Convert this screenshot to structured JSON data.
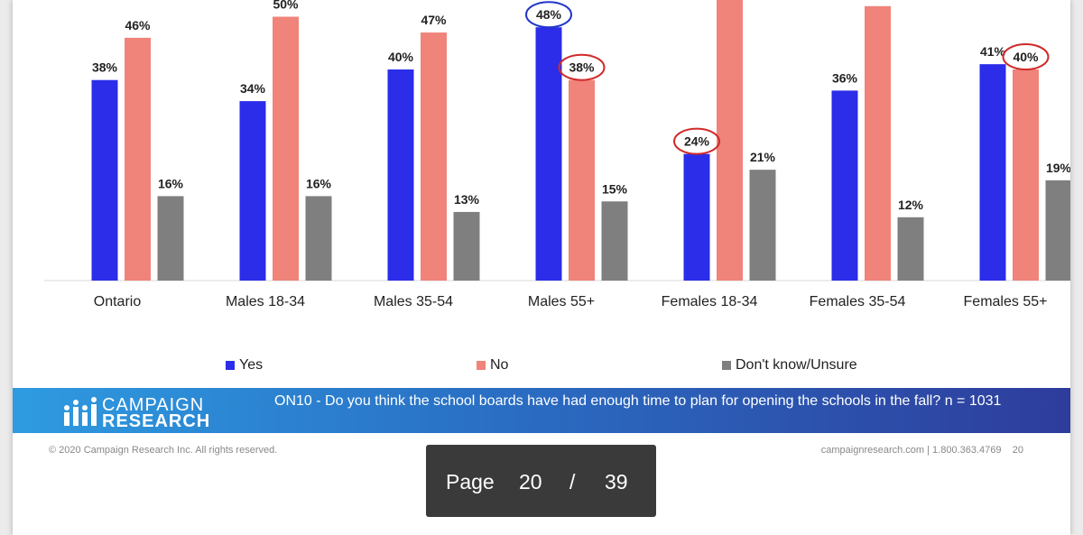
{
  "chart_data": {
    "type": "bar",
    "categories": [
      "Ontario",
      "Males 18-34",
      "Males 35-54",
      "Males 55+",
      "Females 18-34",
      "Females 35-54",
      "Females 55+"
    ],
    "series": [
      {
        "name": "Yes",
        "values": [
          38,
          34,
          40,
          48,
          24,
          36,
          41
        ],
        "color": "#2b2de8"
      },
      {
        "name": "No",
        "values": [
          46,
          50,
          47,
          38,
          56,
          52,
          40
        ],
        "color": "#f0837a"
      },
      {
        "name": "Don't know/Unsure",
        "values": [
          16,
          16,
          13,
          15,
          21,
          12,
          19
        ],
        "color": "#7f7f7f"
      }
    ],
    "value_suffix": "%",
    "ylim": [
      0,
      60
    ],
    "legend_position": "bottom",
    "grid": false,
    "highlights": [
      {
        "category": "Males 55+",
        "series": "Yes",
        "color": "#2436c8"
      },
      {
        "category": "Males 55+",
        "series": "No",
        "color": "#d02a2a"
      },
      {
        "category": "Females 18-34",
        "series": "Yes",
        "color": "#d02a2a"
      },
      {
        "category": "Females 18-34",
        "series": "No",
        "color": "#2436c8"
      },
      {
        "category": "Females 55+",
        "series": "No",
        "color": "#d02a2a"
      }
    ]
  },
  "banner": {
    "logo_line1": "CAMPAIGN",
    "logo_line2": "RESEARCH",
    "question": "ON10 - Do you think the school boards have had enough time to plan for opening the schools in the fall? n = 1031"
  },
  "footer": {
    "copyright": "© 2020 Campaign Research Inc. All rights reserved.",
    "contact": "campaignresearch.com | 1.800.363.4769",
    "slide_number": "20"
  },
  "pager": {
    "label": "Page",
    "current": "20",
    "separator": "/",
    "total": "39"
  }
}
